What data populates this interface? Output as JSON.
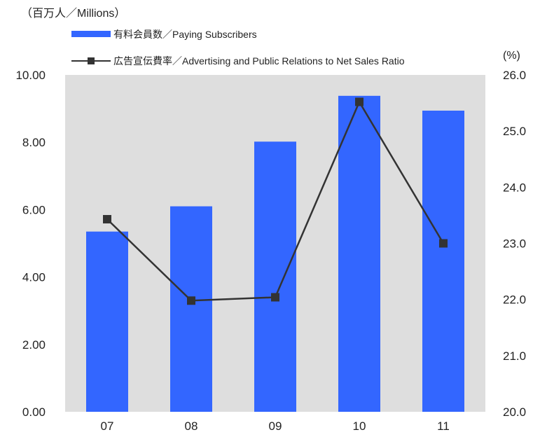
{
  "chart_data": {
    "type": "bar+line",
    "left_unit": "（百万人／Millions）",
    "right_unit": "(%)",
    "categories": [
      "07",
      "08",
      "09",
      "10",
      "11"
    ],
    "series": [
      {
        "name": "有料会員数／Paying Subscribers",
        "type": "bar",
        "axis": "left",
        "color": "#3366ff",
        "values": [
          5.35,
          6.1,
          8.02,
          9.38,
          8.94
        ]
      },
      {
        "name": "広告宣伝費率／Advertising and Public Relations to Net Sales Ratio",
        "type": "line",
        "axis": "right",
        "color": "#333333",
        "marker": "square",
        "values": [
          23.43,
          21.98,
          22.04,
          25.52,
          23.0
        ]
      }
    ],
    "left_axis": {
      "range": [
        0,
        10
      ],
      "ticks": [
        "0.00",
        "2.00",
        "4.00",
        "6.00",
        "8.00",
        "10.00"
      ]
    },
    "right_axis": {
      "range": [
        20,
        26
      ],
      "ticks": [
        "20.0",
        "21.0",
        "22.0",
        "23.0",
        "24.0",
        "25.0",
        "26.0"
      ]
    },
    "grid": false,
    "plot_background": "#dedede",
    "legend_position": "top"
  }
}
